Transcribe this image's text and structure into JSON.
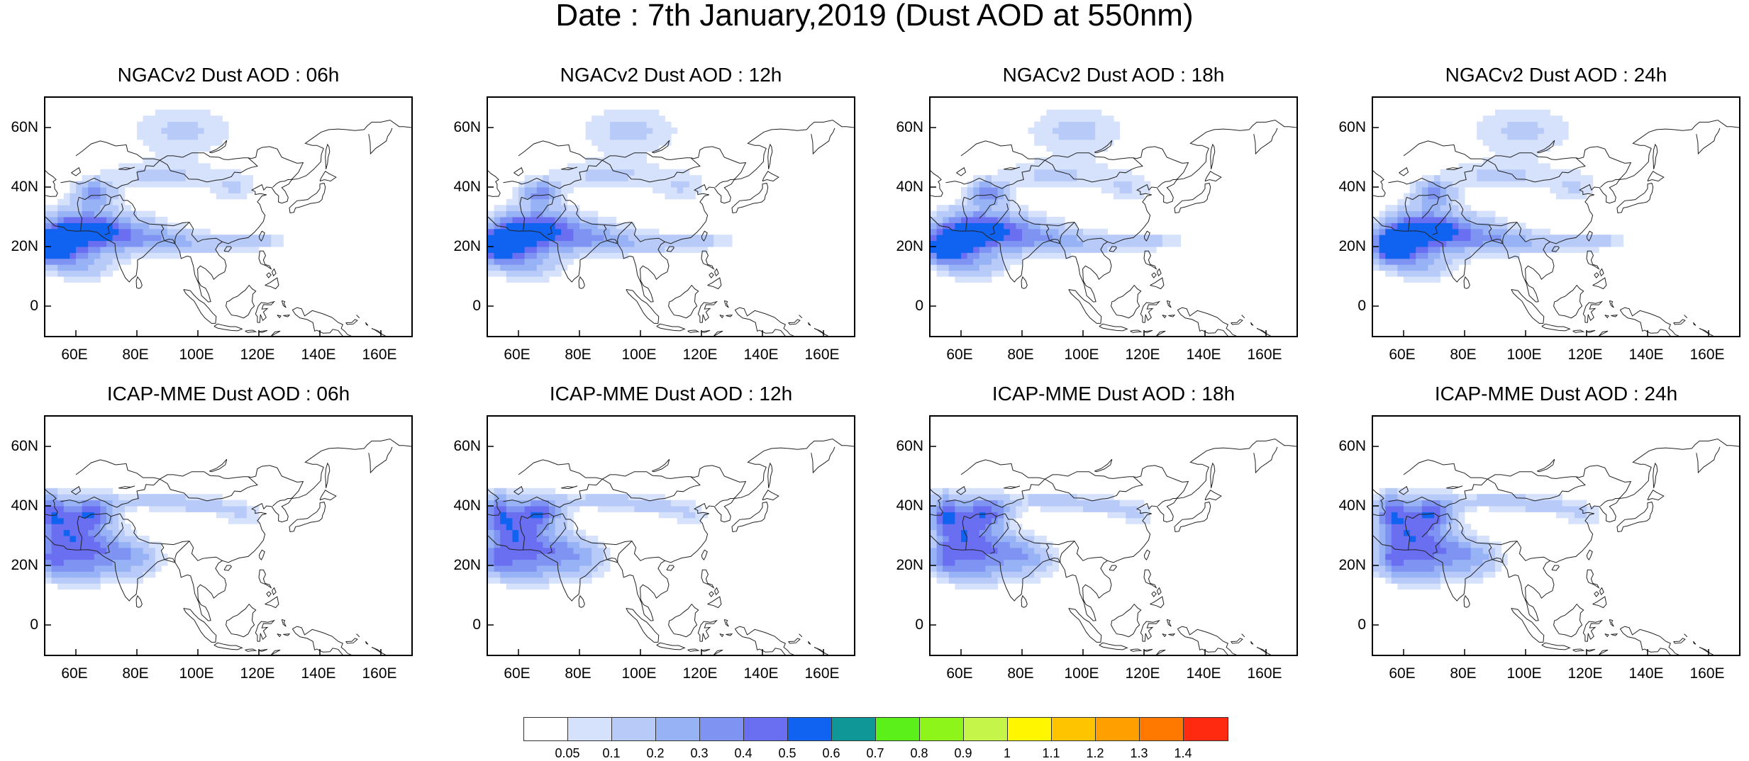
{
  "title": "Date : 7th January,2019 (Dust AOD at 550nm)",
  "panels": [
    {
      "title": "NGACv2 Dust AOD : 06h",
      "model": "NGAC",
      "hour": 6
    },
    {
      "title": "NGACv2 Dust AOD : 12h",
      "model": "NGAC",
      "hour": 12
    },
    {
      "title": "NGACv2 Dust AOD : 18h",
      "model": "NGAC",
      "hour": 18
    },
    {
      "title": "NGACv2 Dust AOD : 24h",
      "model": "NGAC",
      "hour": 24
    },
    {
      "title": "ICAP-MME Dust AOD : 06h",
      "model": "ICAP",
      "hour": 6
    },
    {
      "title": "ICAP-MME Dust AOD : 12h",
      "model": "ICAP",
      "hour": 12
    },
    {
      "title": "ICAP-MME Dust AOD : 18h",
      "model": "ICAP",
      "hour": 18
    },
    {
      "title": "ICAP-MME Dust AOD : 24h",
      "model": "ICAP",
      "hour": 24
    }
  ],
  "axes": {
    "lon_range": [
      50,
      170
    ],
    "lat_range": [
      -10,
      70
    ],
    "x_ticks": [
      "60E",
      "80E",
      "100E",
      "120E",
      "140E",
      "160E"
    ],
    "x_tick_values": [
      60,
      80,
      100,
      120,
      140,
      160
    ],
    "y_ticks": [
      "60N",
      "40N",
      "20N",
      "0"
    ],
    "y_tick_values": [
      60,
      40,
      20,
      0
    ]
  },
  "colorbar": {
    "labels": [
      "0.05",
      "0.1",
      "0.2",
      "0.3",
      "0.4",
      "0.5",
      "0.6",
      "0.7",
      "0.8",
      "0.9",
      "1",
      "1.1",
      "1.2",
      "1.3",
      "1.4"
    ],
    "colors": [
      "#ffffff",
      "#d6e2fb",
      "#b8caf8",
      "#97b3f6",
      "#7f94f2",
      "#6a6ef0",
      "#1062f0",
      "#0f9696",
      "#5cf01a",
      "#8ef51a",
      "#c6f54a",
      "#fff600",
      "#ffc400",
      "#ffa000",
      "#ff7800",
      "#ff2a10"
    ]
  }
}
